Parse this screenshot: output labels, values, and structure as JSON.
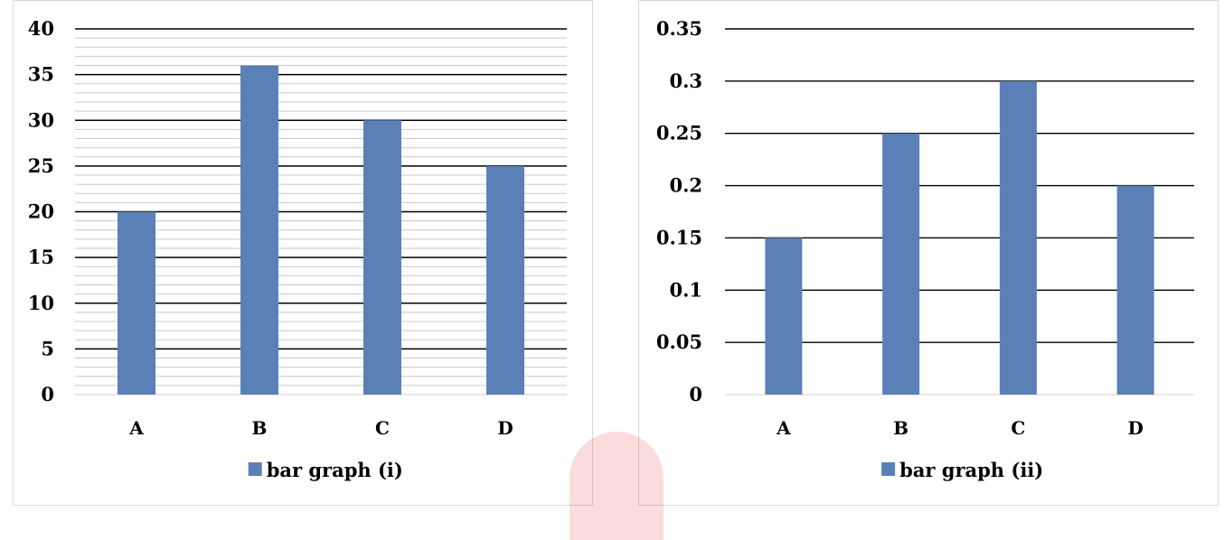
{
  "colors": {
    "bar": "#5b80b8",
    "major_grid": "#000000",
    "minor_grid": "#c8c8c8",
    "watermark": "#e8262b"
  },
  "chart_data": [
    {
      "type": "bar",
      "title": "",
      "categories": [
        "A",
        "B",
        "C",
        "D"
      ],
      "series": [
        {
          "name": "bar graph (i)",
          "values": [
            20,
            36,
            30,
            25
          ]
        }
      ],
      "ylim": [
        0,
        40
      ],
      "yticks": [
        "0",
        "5",
        "10",
        "15",
        "20",
        "25",
        "30",
        "35",
        "40"
      ],
      "major_step": 5,
      "minor_step": 1,
      "grid": true,
      "legend_position": "bottom"
    },
    {
      "type": "bar",
      "title": "",
      "categories": [
        "A",
        "B",
        "C",
        "D"
      ],
      "series": [
        {
          "name": "bar graph (ii)",
          "values": [
            0.15,
            0.25,
            0.3,
            0.2
          ]
        }
      ],
      "ylim": [
        0,
        0.35
      ],
      "yticks": [
        "0",
        "0.05",
        "0.1",
        "0.15",
        "0.2",
        "0.25",
        "0.3",
        "0.35"
      ],
      "major_step": 0.05,
      "minor_step": 0,
      "grid": true,
      "legend_position": "bottom"
    }
  ]
}
